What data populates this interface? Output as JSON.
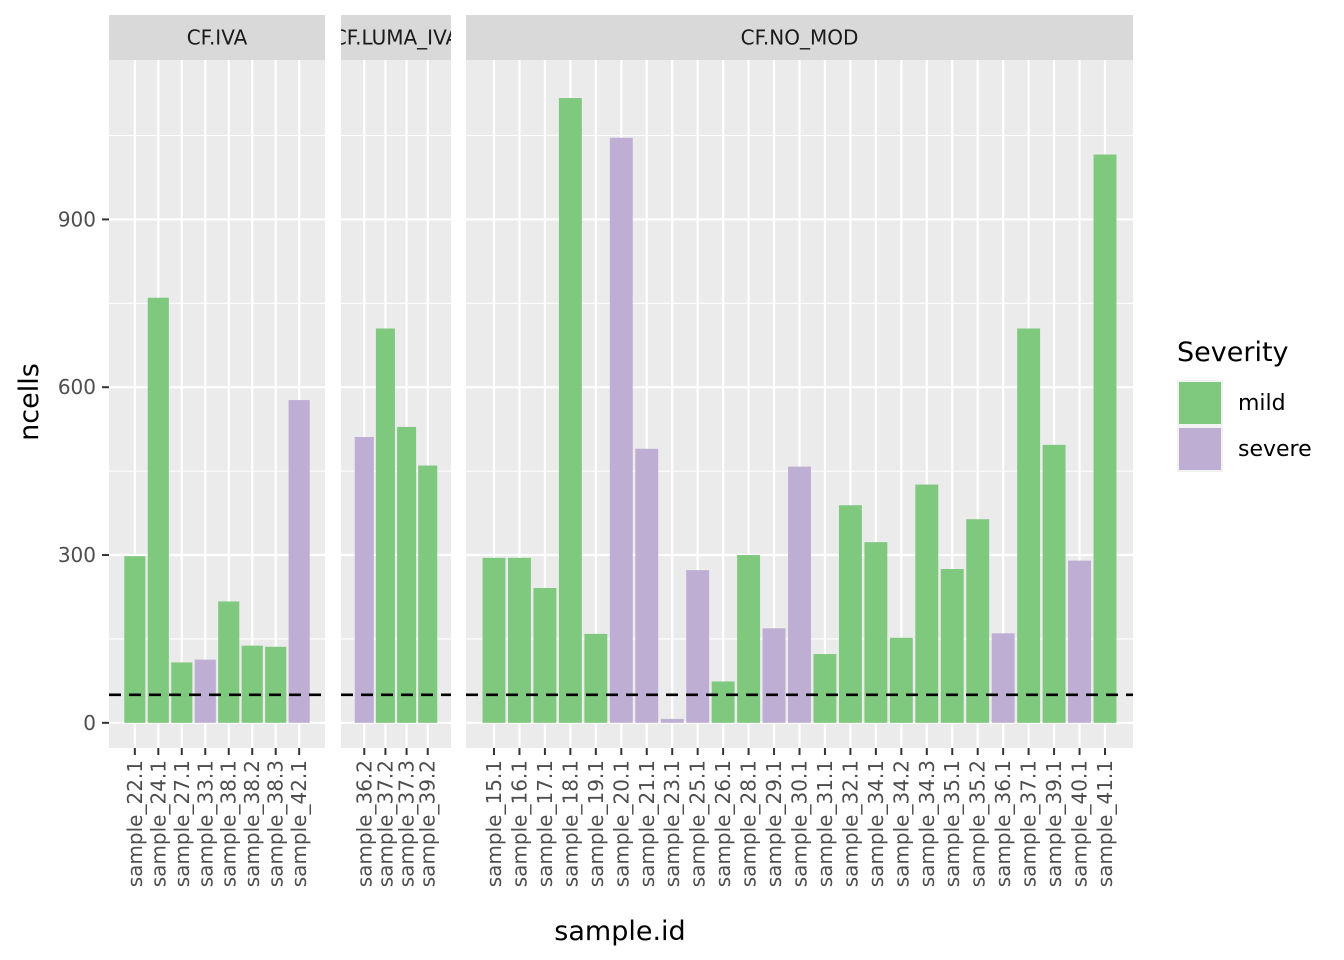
{
  "chart_data": {
    "type": "bar",
    "title": "",
    "xlabel": "sample.id",
    "ylabel": "ncells",
    "ylim": [
      -45,
      1185
    ],
    "yticks": [
      0,
      300,
      600,
      900
    ],
    "ytick_labels": [
      "0",
      "300",
      "600",
      "900"
    ],
    "threshold": 50,
    "legend": {
      "title": "Severity",
      "position": "right",
      "entries": [
        {
          "label": "mild",
          "color": "#7fc97f"
        },
        {
          "label": "severe",
          "color": "#beaed4"
        }
      ]
    },
    "facets": [
      {
        "label": "CF.IVA",
        "categories": [
          "sample_22.1",
          "sample_24.1",
          "sample_27.1",
          "sample_33.1",
          "sample_38.1",
          "sample_38.2",
          "sample_38.3",
          "sample_42.1"
        ],
        "values": [
          298,
          760,
          108,
          113,
          217,
          138,
          136,
          577
        ],
        "severity": [
          "mild",
          "mild",
          "mild",
          "severe",
          "mild",
          "mild",
          "mild",
          "severe"
        ]
      },
      {
        "label": "CF.LUMA_IVA",
        "categories": [
          "sample_36.2",
          "sample_37.2",
          "sample_37.3",
          "sample_39.2"
        ],
        "values": [
          511,
          705,
          529,
          460
        ],
        "severity": [
          "severe",
          "mild",
          "mild",
          "mild"
        ]
      },
      {
        "label": "CF.NO_MOD",
        "categories": [
          "sample_15.1",
          "sample_16.1",
          "sample_17.1",
          "sample_18.1",
          "sample_19.1",
          "sample_20.1",
          "sample_21.1",
          "sample_23.1",
          "sample_25.1",
          "sample_26.1",
          "sample_28.1",
          "sample_29.1",
          "sample_30.1",
          "sample_31.1",
          "sample_32.1",
          "sample_34.1",
          "sample_34.2",
          "sample_34.3",
          "sample_35.1",
          "sample_35.2",
          "sample_36.1",
          "sample_37.1",
          "sample_39.1",
          "sample_40.1",
          "sample_41.1"
        ],
        "values": [
          295,
          295,
          241,
          1117,
          159,
          1046,
          490,
          7,
          273,
          74,
          300,
          169,
          458,
          123,
          389,
          323,
          152,
          426,
          275,
          364,
          160,
          705,
          497,
          290,
          1016
        ],
        "severity": [
          "mild",
          "mild",
          "mild",
          "mild",
          "mild",
          "severe",
          "severe",
          "severe",
          "severe",
          "mild",
          "mild",
          "severe",
          "severe",
          "mild",
          "mild",
          "mild",
          "mild",
          "mild",
          "mild",
          "mild",
          "severe",
          "mild",
          "mild",
          "severe",
          "mild"
        ]
      }
    ]
  }
}
